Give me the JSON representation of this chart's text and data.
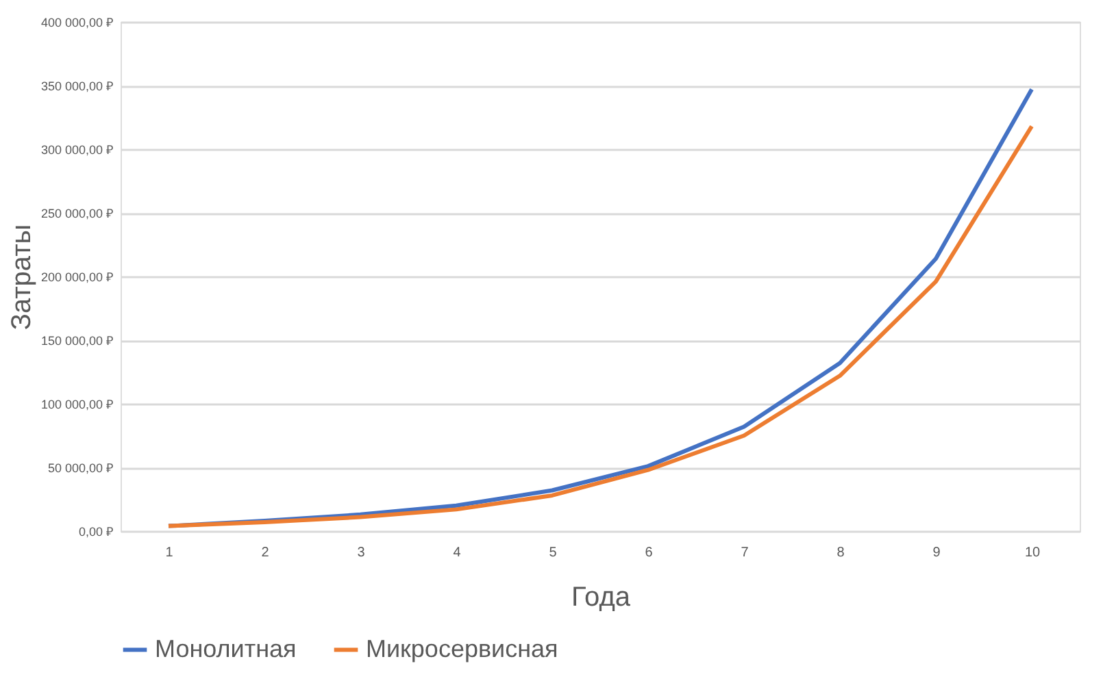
{
  "chart_data": {
    "type": "line",
    "xlabel": "Года",
    "ylabel": "Затраты",
    "categories": [
      "1",
      "2",
      "3",
      "4",
      "5",
      "6",
      "7",
      "8",
      "9",
      "10"
    ],
    "series": [
      {
        "name": "Монолитная",
        "color": "#4472c4",
        "values": [
          4000,
          8000,
          13000,
          20000,
          32000,
          51000,
          82000,
          132000,
          214000,
          347000
        ]
      },
      {
        "name": "Микросервисная",
        "color": "#ed7d31",
        "values": [
          4000,
          7000,
          11000,
          17000,
          28000,
          48000,
          75000,
          122000,
          196000,
          318000
        ]
      }
    ],
    "ylim": [
      0,
      400000
    ],
    "yticks": [
      {
        "value": 0,
        "label": "0,00 ₽"
      },
      {
        "value": 50000,
        "label": "50 000,00 ₽"
      },
      {
        "value": 100000,
        "label": "100 000,00 ₽"
      },
      {
        "value": 150000,
        "label": "150 000,00 ₽"
      },
      {
        "value": 200000,
        "label": "200 000,00 ₽"
      },
      {
        "value": 250000,
        "label": "250 000,00 ₽"
      },
      {
        "value": 300000,
        "label": "300 000,00 ₽"
      },
      {
        "value": 350000,
        "label": "350 000,00 ₽"
      },
      {
        "value": 400000,
        "label": "400 000,00 ₽"
      }
    ],
    "grid": "y",
    "legend": "bottom",
    "marker": "none",
    "line_style": "solid"
  }
}
